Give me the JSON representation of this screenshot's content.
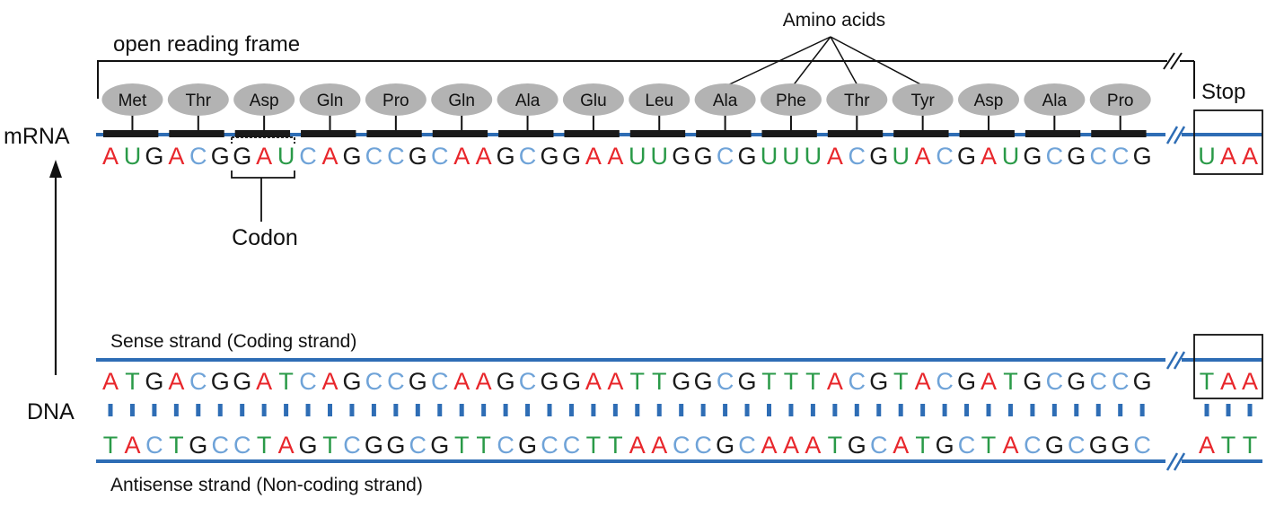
{
  "labels": {
    "open_reading_frame": "open reading frame",
    "amino_acids": "Amino acids",
    "mrna": "mRNA",
    "codon": "Codon",
    "stop": "Stop",
    "dna": "DNA",
    "sense_strand": "Sense strand (Coding strand)",
    "antisense_strand": "Antisense strand (Non-coding strand)"
  },
  "amino_acids": [
    "Met",
    "Thr",
    "Asp",
    "Gln",
    "Pro",
    "Gln",
    "Ala",
    "Glu",
    "Leu",
    "Ala",
    "Phe",
    "Thr",
    "Tyr",
    "Asp",
    "Ala",
    "Pro"
  ],
  "mrna_sequence": "AUGACGGAUCAGCCGCAAGCGGAAUUGGCGUUUACGUACGAUGCGCCG",
  "mrna_stop": "UAA",
  "sense_sequence": "ATGACGGATCAGCCGCAAGCGGAATTGGCGTTTACGTACGATGCGCCG",
  "sense_stop": "TAA",
  "antisense_sequence": "TACTGCCTAGTCGGCGTTCGCCTTAACCGCAAATGCATGCTACGCGGC",
  "antisense_stop": "ATT",
  "colors": {
    "A": "#e8262b",
    "U": "#2a9a48",
    "T": "#2a9a48",
    "C": "#6fa3d8",
    "G": "#1a1a1a",
    "strand": "#2e6db5",
    "amino_acid_fill": "#b3b3b3",
    "codon_bar": "#1a1a1a"
  }
}
